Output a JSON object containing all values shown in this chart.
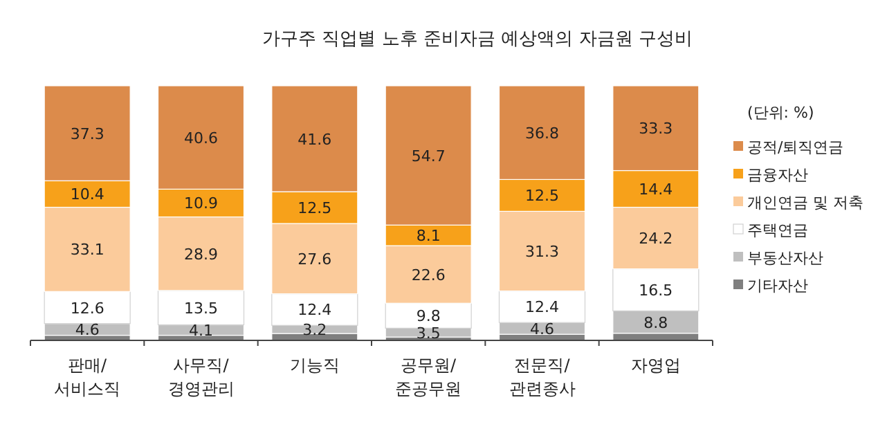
{
  "chart_data": {
    "type": "bar",
    "stacked": true,
    "title": "가구주 직업별 노후 준비자금 예상액의 자금원 구성비",
    "legend_title": "(단위: %)",
    "legend": "right",
    "categories": [
      "판매/서비스직",
      "사무직/경영관리",
      "기능직",
      "공무원/준공무원",
      "전문직/관련종사",
      "자영업"
    ],
    "series": [
      {
        "name": "기타자산",
        "color": "#7f7f7f",
        "values": [
          2.0,
          2.0,
          2.7,
          1.3,
          2.4,
          2.8
        ],
        "value_labels": [
          null,
          null,
          null,
          null,
          null,
          null
        ]
      },
      {
        "name": "부동산자산",
        "color": "#bfbfbf",
        "values": [
          4.6,
          4.1,
          3.2,
          3.5,
          4.6,
          8.8
        ],
        "value_labels": [
          "4.6",
          "4.1",
          "3.2",
          "3.5",
          "4.6",
          "8.8"
        ]
      },
      {
        "name": "주택연금",
        "color": "#ffffff",
        "values": [
          12.6,
          13.5,
          12.4,
          9.8,
          12.4,
          16.5
        ],
        "value_labels": [
          "12.6",
          "13.5",
          "12.4",
          "9.8",
          "12.4",
          "16.5"
        ]
      },
      {
        "name": "개인연금 및 저축",
        "color": "#fbcb9b",
        "values": [
          33.1,
          28.9,
          27.6,
          22.6,
          31.3,
          24.2
        ],
        "value_labels": [
          "33.1",
          "28.9",
          "27.6",
          "22.6",
          "31.3",
          "24.2"
        ]
      },
      {
        "name": "금융자산",
        "color": "#f7a11a",
        "values": [
          10.4,
          10.9,
          12.5,
          8.1,
          12.5,
          14.4
        ],
        "value_labels": [
          "10.4",
          "10.9",
          "12.5",
          "8.1",
          "12.5",
          "14.4"
        ]
      },
      {
        "name": "공적/퇴직연금",
        "color": "#dc8b4b",
        "values": [
          37.3,
          40.6,
          41.6,
          54.7,
          36.8,
          33.3
        ],
        "value_labels": [
          "37.3",
          "40.6",
          "41.6",
          "54.7",
          "36.8",
          "33.3"
        ]
      }
    ]
  }
}
